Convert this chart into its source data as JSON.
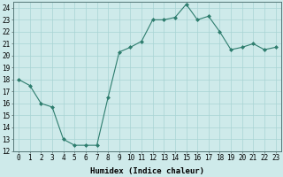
{
  "x": [
    0,
    1,
    2,
    3,
    4,
    5,
    6,
    7,
    8,
    9,
    10,
    11,
    12,
    13,
    14,
    15,
    16,
    17,
    18,
    19,
    20,
    21,
    22,
    23
  ],
  "y": [
    18.0,
    17.5,
    16.0,
    15.7,
    13.0,
    12.5,
    12.5,
    12.5,
    16.5,
    20.3,
    20.7,
    21.2,
    23.0,
    23.0,
    23.2,
    24.3,
    23.0,
    23.3,
    22.0,
    20.5,
    20.7,
    21.0,
    20.5,
    20.7
  ],
  "line_color": "#2e7d6e",
  "marker": "D",
  "marker_size": 2,
  "bg_color": "#ceeaea",
  "grid_color": "#a8d4d4",
  "xlabel": "Humidex (Indice chaleur)",
  "ylim": [
    12,
    24.5
  ],
  "xlim": [
    -0.5,
    23.5
  ],
  "yticks": [
    12,
    13,
    14,
    15,
    16,
    17,
    18,
    19,
    20,
    21,
    22,
    23,
    24
  ],
  "xticks": [
    0,
    1,
    2,
    3,
    4,
    5,
    6,
    7,
    8,
    9,
    10,
    11,
    12,
    13,
    14,
    15,
    16,
    17,
    18,
    19,
    20,
    21,
    22,
    23
  ],
  "tick_fontsize": 5.5,
  "label_fontsize": 6.5
}
